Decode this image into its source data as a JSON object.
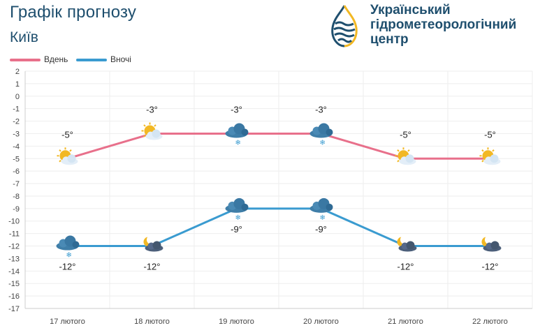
{
  "header": {
    "title": "Графік прогнозу",
    "city": "Київ"
  },
  "org": {
    "line1": "Український",
    "line2": "гідрометеорологічний",
    "line3": "центр"
  },
  "colors": {
    "day": "#e8708b",
    "night": "#3a9bd0",
    "brand": "#1f4f6e",
    "accent": "#f2b824"
  },
  "chart_data": {
    "type": "line",
    "categories": [
      "17 лютого",
      "18 лютого",
      "19 лютого",
      "20 лютого",
      "21 лютого",
      "22 лютого"
    ],
    "ylim": [
      -17,
      2
    ],
    "yticks": [
      2,
      1,
      0,
      -1,
      -2,
      -3,
      -4,
      -5,
      -6,
      -7,
      -8,
      -9,
      -10,
      -11,
      -12,
      -13,
      -14,
      -15,
      -16,
      -17
    ],
    "grid": true,
    "legend": "top-left",
    "series": [
      {
        "name": "Вдень",
        "values": [
          -5,
          -3,
          -3,
          -3,
          -5,
          -5
        ],
        "labels": [
          "-5°",
          "-3°",
          "-3°",
          "-3°",
          "-5°",
          "-5°"
        ],
        "icons": [
          "sun-cloud-icon",
          "sun-cloud-icon",
          "cloud-snow-icon",
          "cloud-snow-icon",
          "sun-cloud-icon",
          "sun-cloud-icon"
        ]
      },
      {
        "name": "Вночі",
        "values": [
          -12,
          -12,
          -9,
          -9,
          -12,
          -12
        ],
        "labels": [
          "-12°",
          "-12°",
          "-9°",
          "-9°",
          "-12°",
          "-12°"
        ],
        "icons": [
          "cloud-snow-icon",
          "moon-cloud-icon",
          "cloud-snow-icon",
          "cloud-snow-icon",
          "moon-cloud-icon",
          "moon-cloud-icon"
        ]
      }
    ]
  }
}
